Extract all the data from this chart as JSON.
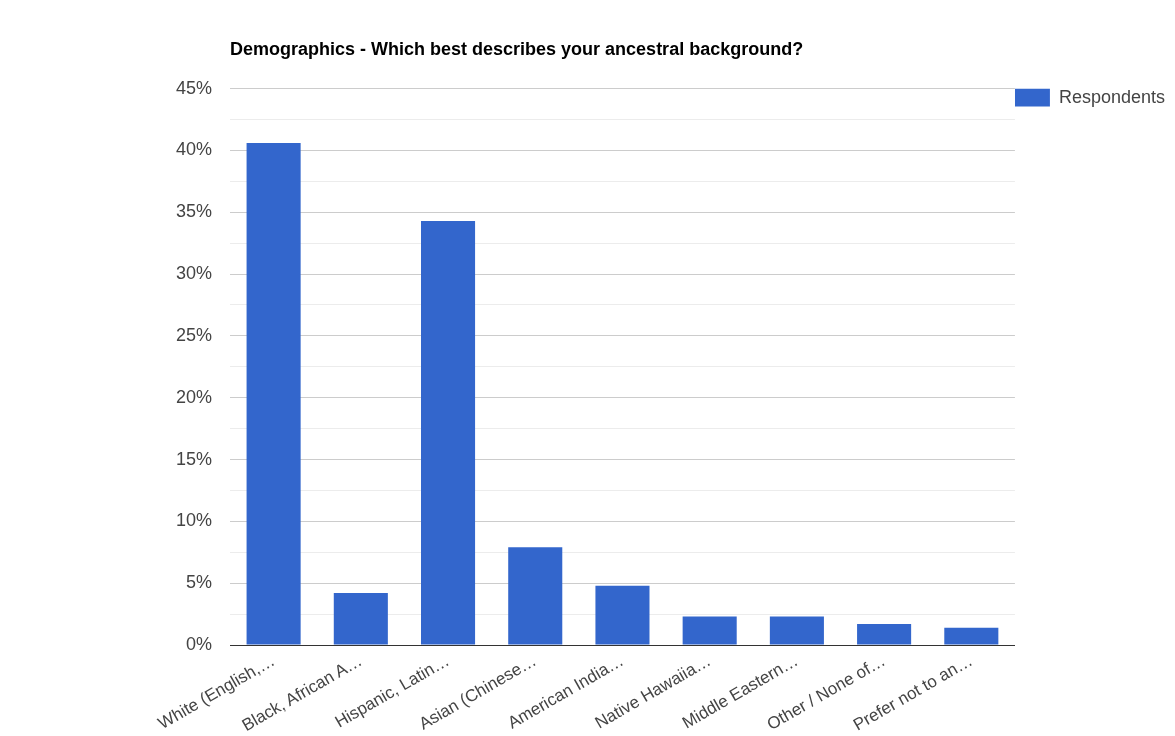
{
  "chart_data": {
    "type": "bar",
    "title": "Demographics - Which best describes your ancestral background?",
    "categories": [
      "White (English,…",
      "Black, African A…",
      "Hispanic, Latin…",
      "Asian (Chinese…",
      "American India…",
      "Native Hawaiia…",
      "Middle Eastern…",
      "Other / None of…",
      "Prefer not to an…"
    ],
    "series": [
      {
        "name": "Respondents",
        "color": "#3366cc",
        "values": [
          40.6,
          4.2,
          34.3,
          7.9,
          4.8,
          2.3,
          2.3,
          1.7,
          1.4
        ]
      }
    ],
    "ylim": [
      0,
      45
    ],
    "yticks": [
      {
        "value": 0,
        "label": "0%"
      },
      {
        "value": 2.5,
        "label": null
      },
      {
        "value": 5,
        "label": "5%"
      },
      {
        "value": 7.5,
        "label": null
      },
      {
        "value": 10,
        "label": "10%"
      },
      {
        "value": 12.5,
        "label": null
      },
      {
        "value": 15,
        "label": "15%"
      },
      {
        "value": 17.5,
        "label": null
      },
      {
        "value": 20,
        "label": "20%"
      },
      {
        "value": 22.5,
        "label": null
      },
      {
        "value": 25,
        "label": "25%"
      },
      {
        "value": 27.5,
        "label": null
      },
      {
        "value": 30,
        "label": "30%"
      },
      {
        "value": 32.5,
        "label": null
      },
      {
        "value": 35,
        "label": "35%"
      },
      {
        "value": 37.5,
        "label": null
      },
      {
        "value": 40,
        "label": "40%"
      },
      {
        "value": 42.5,
        "label": null
      },
      {
        "value": 45,
        "label": "45%"
      }
    ],
    "grid": "y",
    "legend": "top right"
  }
}
